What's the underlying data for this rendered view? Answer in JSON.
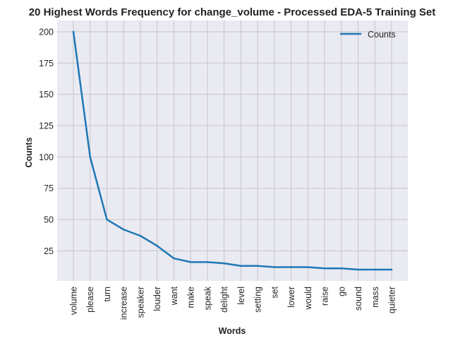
{
  "chart_data": {
    "type": "line",
    "title": "20 Highest Words Frequency for change_volume - Processed EDA-5 Training Set",
    "xlabel": "Words",
    "ylabel": "Counts",
    "categories": [
      "volume",
      "please",
      "turn",
      "increase",
      "speaker",
      "louder",
      "want",
      "make",
      "speak",
      "delight",
      "level",
      "setting",
      "set",
      "lower",
      "would",
      "raise",
      "go",
      "sound",
      "mass",
      "quieter"
    ],
    "series": [
      {
        "name": "Counts",
        "values": [
          200,
          100,
          50,
          42,
          37,
          29,
          19,
          16,
          16,
          15,
          13,
          13,
          12,
          12,
          12,
          11,
          11,
          10,
          10,
          10
        ]
      }
    ],
    "yticks": [
      25,
      50,
      75,
      100,
      125,
      150,
      175,
      200
    ],
    "ylim": [
      1,
      209
    ],
    "grid": true,
    "legend_position": "top-right",
    "colors": {
      "line": "#1f77b4",
      "plot_background": "#eaeaf2",
      "grid": "#c4c4c8"
    }
  }
}
